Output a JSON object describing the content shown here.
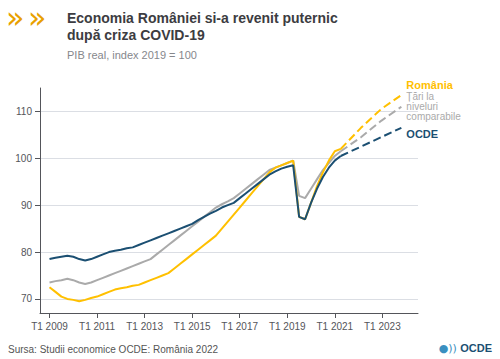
{
  "chart_data": {
    "type": "line",
    "title": "Economia României si-a revenit puternic\ndupă criza COVID-19",
    "subtitle": "PIB real, index 2019 = 100",
    "annotations": [
      "»",
      "»",
      "Sursa: Studii economice OCDE: România 2022",
      "●))",
      "OCDE"
    ],
    "xlim": [
      2008.6,
      2024.5
    ],
    "xticks": [
      {
        "value": 2009,
        "label": "T1 2009"
      },
      {
        "value": 2011,
        "label": "T1 2011"
      },
      {
        "value": 2013,
        "label": "T1 2013"
      },
      {
        "value": 2015,
        "label": "T1 2015"
      },
      {
        "value": 2017,
        "label": "T1 2017"
      },
      {
        "value": 2019,
        "label": "T1 2019"
      },
      {
        "value": 2021,
        "label": "T1 2021"
      },
      {
        "value": 2023,
        "label": "T1 2023"
      }
    ],
    "ylim": [
      67,
      115
    ],
    "yticks": [
      70,
      80,
      90,
      100,
      110
    ],
    "grid": true,
    "series": [
      {
        "name": "Țări la\nniveluri\ncomparabile",
        "color": "#AAAAAA",
        "line_style": "solid",
        "x": [
          2009,
          2009.25,
          2009.5,
          2009.75,
          2010,
          2010.25,
          2010.5,
          2010.75,
          2011,
          2011.25,
          2011.5,
          2011.75,
          2012,
          2012.25,
          2012.5,
          2012.75,
          2013,
          2013.25,
          2013.5,
          2013.75,
          2014,
          2014.25,
          2014.5,
          2014.75,
          2015,
          2015.25,
          2015.5,
          2015.75,
          2016,
          2016.25,
          2016.5,
          2016.75,
          2017,
          2017.25,
          2017.5,
          2017.75,
          2018,
          2018.25,
          2018.5,
          2018.75,
          2019,
          2019.25,
          2019.5,
          2019.75,
          2020,
          2020.25,
          2020.5,
          2020.75,
          2021,
          2021.25
        ],
        "values": [
          73.5,
          73.8,
          74.0,
          74.3,
          74.0,
          73.5,
          73.2,
          73.5,
          74.0,
          74.5,
          75.0,
          75.5,
          76.0,
          76.5,
          77.0,
          77.5,
          78.0,
          78.5,
          79.5,
          80.5,
          81.5,
          82.5,
          83.5,
          84.5,
          85.5,
          86.5,
          87.5,
          88.5,
          89.5,
          90.2,
          90.8,
          91.5,
          92.5,
          93.5,
          94.5,
          95.5,
          96.5,
          97.5,
          98.0,
          98.5,
          99.0,
          99.5,
          92.0,
          91.5,
          93.5,
          95.5,
          97.5,
          99.0,
          100.5,
          101.5
        ]
      },
      {
        "name": "România",
        "color": "#FFC000",
        "line_style": "solid",
        "x": [
          2009,
          2009.25,
          2009.5,
          2009.75,
          2010,
          2010.25,
          2010.5,
          2010.75,
          2011,
          2011.25,
          2011.5,
          2011.75,
          2012,
          2012.25,
          2012.5,
          2012.75,
          2013,
          2013.25,
          2013.5,
          2013.75,
          2014,
          2014.25,
          2014.5,
          2014.75,
          2015,
          2015.25,
          2015.5,
          2015.75,
          2016,
          2016.25,
          2016.5,
          2016.75,
          2017,
          2017.25,
          2017.5,
          2017.75,
          2018,
          2018.25,
          2018.5,
          2018.75,
          2019,
          2019.25,
          2019.5,
          2019.75,
          2020,
          2020.25,
          2020.5,
          2020.75,
          2021,
          2021.25
        ],
        "values": [
          72.5,
          71.5,
          70.5,
          70.0,
          69.8,
          69.5,
          69.8,
          70.2,
          70.5,
          71.0,
          71.5,
          72.0,
          72.3,
          72.5,
          72.8,
          73.0,
          73.5,
          74.0,
          74.5,
          75.0,
          75.5,
          76.5,
          77.5,
          78.5,
          79.5,
          80.5,
          81.5,
          82.5,
          83.5,
          85.0,
          86.5,
          88.0,
          89.5,
          91.0,
          92.5,
          94.0,
          95.5,
          97.0,
          98.0,
          98.5,
          99.0,
          99.5,
          87.5,
          87.0,
          90.5,
          94.0,
          97.0,
          99.5,
          101.5,
          102.0
        ]
      },
      {
        "name": "OCDE",
        "color": "#1B4F72",
        "line_style": "solid",
        "x": [
          2009,
          2009.25,
          2009.5,
          2009.75,
          2010,
          2010.25,
          2010.5,
          2010.75,
          2011,
          2011.25,
          2011.5,
          2011.75,
          2012,
          2012.25,
          2012.5,
          2012.75,
          2013,
          2013.25,
          2013.5,
          2013.75,
          2014,
          2014.25,
          2014.5,
          2014.75,
          2015,
          2015.25,
          2015.5,
          2015.75,
          2016,
          2016.25,
          2016.5,
          2016.75,
          2017,
          2017.25,
          2017.5,
          2017.75,
          2018,
          2018.25,
          2018.5,
          2018.75,
          2019,
          2019.25,
          2019.5,
          2019.75,
          2020,
          2020.25,
          2020.5,
          2020.75,
          2021,
          2021.25
        ],
        "values": [
          78.5,
          78.8,
          79.0,
          79.2,
          79.0,
          78.5,
          78.2,
          78.5,
          79.0,
          79.5,
          80.0,
          80.3,
          80.5,
          80.8,
          81.0,
          81.5,
          82.0,
          82.5,
          83.0,
          83.5,
          84.0,
          84.5,
          85.0,
          85.5,
          86.0,
          86.8,
          87.5,
          88.2,
          88.8,
          89.5,
          90.0,
          90.5,
          91.5,
          92.5,
          93.5,
          94.5,
          95.5,
          96.5,
          97.2,
          97.8,
          98.2,
          98.5,
          87.5,
          87.0,
          90.5,
          93.5,
          96.0,
          98.0,
          99.5,
          100.5
        ]
      },
      {
        "name": "Țări la\nniveluri\ncomparabile",
        "color": "#AAAAAA",
        "line_style": "dashed",
        "x": [
          2021.25,
          2022.1,
          2022.95,
          2023.8
        ],
        "values": [
          101.5,
          104.5,
          108.0,
          111.0
        ]
      },
      {
        "name": "România",
        "color": "#FFC000",
        "line_style": "dashed",
        "x": [
          2021.25,
          2022.1,
          2022.95,
          2023.8
        ],
        "values": [
          102.0,
          106.5,
          110.5,
          113.5
        ]
      },
      {
        "name": "OCDE",
        "color": "#1B4F72",
        "line_style": "dashed",
        "x": [
          2021.25,
          2022.1,
          2022.95,
          2023.8
        ],
        "values": [
          100.5,
          102.5,
          104.5,
          106.5
        ]
      }
    ]
  }
}
